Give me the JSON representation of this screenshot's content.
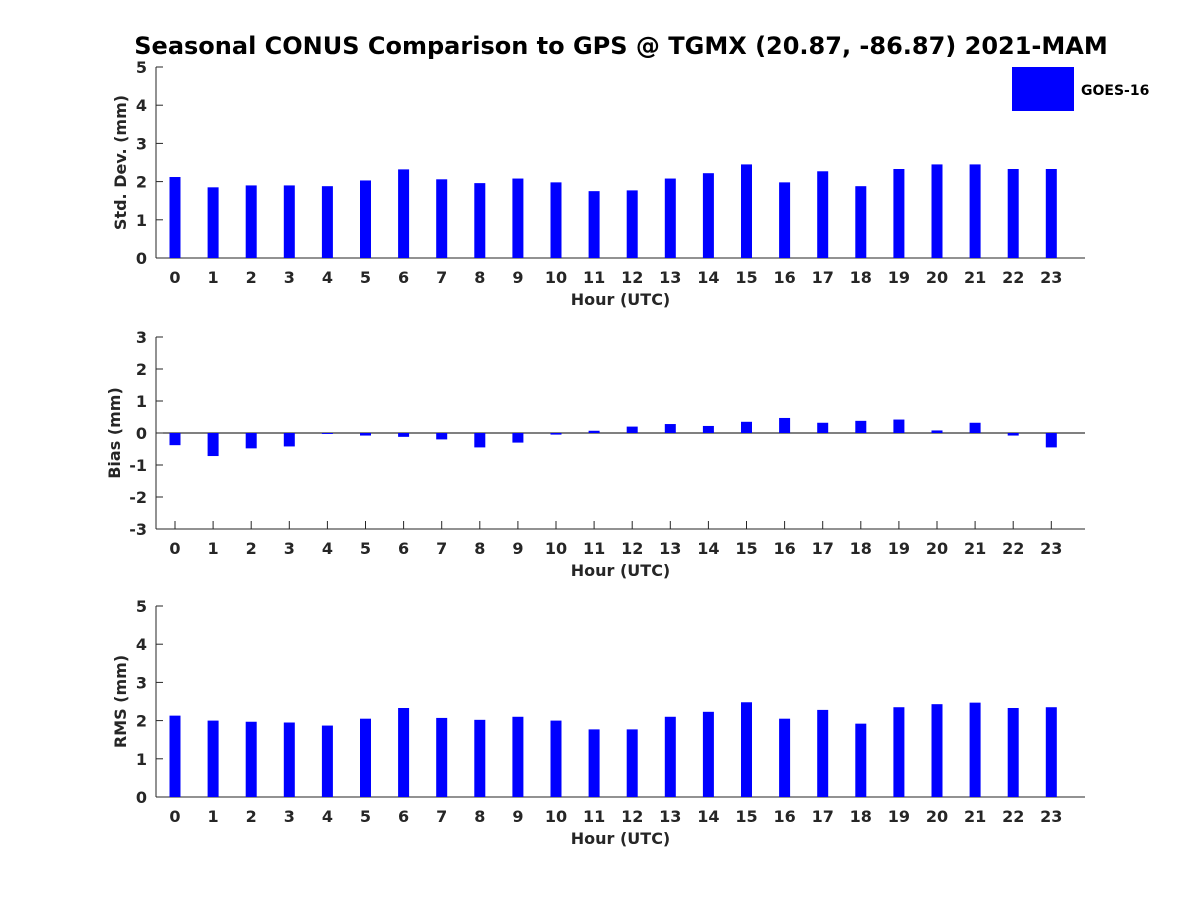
{
  "title": "Seasonal CONUS Comparison to GPS @ TGMX (20.87, -86.87) 2021-MAM",
  "legend": {
    "label": "GOES-16",
    "color": "#0000ff",
    "position": "top-right"
  },
  "chart_data": [
    {
      "type": "bar",
      "xlabel": "Hour (UTC)",
      "ylabel": "Std. Dev. (mm)",
      "categories": [
        "0",
        "1",
        "2",
        "3",
        "4",
        "5",
        "6",
        "7",
        "8",
        "9",
        "10",
        "11",
        "12",
        "13",
        "14",
        "15",
        "16",
        "17",
        "18",
        "19",
        "20",
        "21",
        "22",
        "23"
      ],
      "series": [
        {
          "name": "GOES-16",
          "color": "#0000ff",
          "values": [
            2.12,
            1.85,
            1.9,
            1.9,
            1.88,
            2.03,
            2.32,
            2.06,
            1.96,
            2.08,
            1.98,
            1.75,
            1.77,
            2.08,
            2.22,
            2.45,
            1.98,
            2.27,
            1.88,
            2.33,
            2.45,
            2.45,
            2.33,
            2.33
          ]
        }
      ],
      "ylim": [
        0,
        5
      ],
      "yticks": [
        0,
        1,
        2,
        3,
        4,
        5
      ],
      "yticklabels": [
        "0",
        "1",
        "2",
        "3",
        "4",
        "5"
      ]
    },
    {
      "type": "bar",
      "xlabel": "Hour (UTC)",
      "ylabel": "Bias (mm)",
      "categories": [
        "0",
        "1",
        "2",
        "3",
        "4",
        "5",
        "6",
        "7",
        "8",
        "9",
        "10",
        "11",
        "12",
        "13",
        "14",
        "15",
        "16",
        "17",
        "18",
        "19",
        "20",
        "21",
        "22",
        "23"
      ],
      "series": [
        {
          "name": "GOES-16",
          "color": "#0000ff",
          "values": [
            -0.38,
            -0.72,
            -0.48,
            -0.42,
            -0.03,
            -0.08,
            -0.12,
            -0.2,
            -0.45,
            -0.3,
            -0.05,
            0.07,
            0.2,
            0.28,
            0.22,
            0.35,
            0.47,
            0.32,
            0.38,
            0.42,
            0.08,
            0.32,
            -0.08,
            -0.45
          ]
        }
      ],
      "ylim": [
        -3,
        3
      ],
      "yticks": [
        -3,
        -2,
        -1,
        0,
        1,
        2,
        3
      ],
      "yticklabels": [
        "-3",
        "-2",
        "-1",
        "0",
        "1",
        "2",
        "3"
      ],
      "zero_line": true
    },
    {
      "type": "bar",
      "xlabel": "Hour (UTC)",
      "ylabel": "RMS (mm)",
      "categories": [
        "0",
        "1",
        "2",
        "3",
        "4",
        "5",
        "6",
        "7",
        "8",
        "9",
        "10",
        "11",
        "12",
        "13",
        "14",
        "15",
        "16",
        "17",
        "18",
        "19",
        "20",
        "21",
        "22",
        "23"
      ],
      "series": [
        {
          "name": "GOES-16",
          "color": "#0000ff",
          "values": [
            2.13,
            2.0,
            1.97,
            1.95,
            1.87,
            2.05,
            2.33,
            2.07,
            2.02,
            2.1,
            2.0,
            1.77,
            1.77,
            2.1,
            2.23,
            2.48,
            2.05,
            2.28,
            1.92,
            2.35,
            2.43,
            2.47,
            2.33,
            2.35
          ]
        }
      ],
      "ylim": [
        0,
        5
      ],
      "yticks": [
        0,
        1,
        2,
        3,
        4,
        5
      ],
      "yticklabels": [
        "0",
        "1",
        "2",
        "3",
        "4",
        "5"
      ]
    }
  ]
}
